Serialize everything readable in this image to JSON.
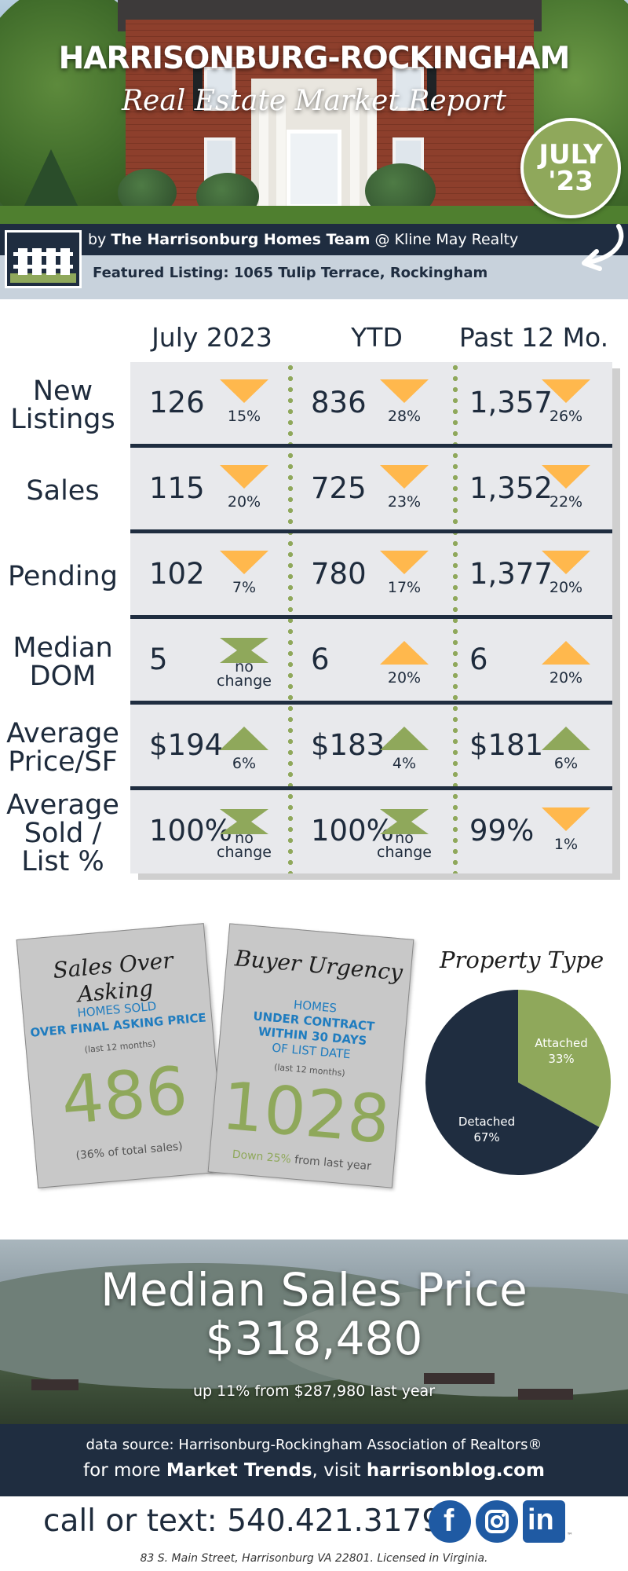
{
  "header": {
    "title": "HARRISONBURG-ROCKINGHAM",
    "subtitle": "Real Estate Market Report",
    "month_line1": "JULY",
    "month_line2": "'23",
    "byline_prefix": "by",
    "team": "The Harrisonburg Homes Team",
    "byline_suffix": "@ Kline May Realty",
    "featured": "Featured Listing:  1065 Tulip Terrace, Rockingham"
  },
  "stats": {
    "columns": [
      "July 2023",
      "YTD",
      "Past 12 Mo."
    ],
    "rows": [
      {
        "label_lines": [
          "New",
          "Listings"
        ],
        "cells": [
          {
            "value": "126",
            "pct": "15%",
            "trend": "down"
          },
          {
            "value": "836",
            "pct": "28%",
            "trend": "down"
          },
          {
            "value": "1,357",
            "pct": "26%",
            "trend": "down"
          }
        ]
      },
      {
        "label_lines": [
          "Sales"
        ],
        "cells": [
          {
            "value": "115",
            "pct": "20%",
            "trend": "down"
          },
          {
            "value": "725",
            "pct": "23%",
            "trend": "down"
          },
          {
            "value": "1,352",
            "pct": "22%",
            "trend": "down"
          }
        ]
      },
      {
        "label_lines": [
          "Pending"
        ],
        "cells": [
          {
            "value": "102",
            "pct": "7%",
            "trend": "down"
          },
          {
            "value": "780",
            "pct": "17%",
            "trend": "down"
          },
          {
            "value": "1,377",
            "pct": "20%",
            "trend": "down"
          }
        ]
      },
      {
        "label_lines": [
          "Median",
          "DOM"
        ],
        "cells": [
          {
            "value": "5",
            "pct": "no change",
            "trend": "flat"
          },
          {
            "value": "6",
            "pct": "20%",
            "trend": "up-orange"
          },
          {
            "value": "6",
            "pct": "20%",
            "trend": "up-orange"
          }
        ]
      },
      {
        "label_lines": [
          "Average",
          "Price/SF"
        ],
        "cells": [
          {
            "value": "$194",
            "pct": "6%",
            "trend": "up-green"
          },
          {
            "value": "$183",
            "pct": "4%",
            "trend": "up-green"
          },
          {
            "value": "$181",
            "pct": "6%",
            "trend": "up-green"
          }
        ]
      },
      {
        "label_lines": [
          "Average",
          "Sold /",
          "List %"
        ],
        "cells": [
          {
            "value": "100%",
            "pct": "no change",
            "trend": "flat"
          },
          {
            "value": "100%",
            "pct": "no change",
            "trend": "flat"
          },
          {
            "value": "99%",
            "pct": "1%",
            "trend": "down"
          }
        ]
      }
    ]
  },
  "cards": {
    "over_asking": {
      "title": "Sales Over Asking",
      "line1": "HOMES SOLD",
      "line2": "OVER FINAL ASKING PRICE",
      "note": "(last 12 months)",
      "value": "486",
      "foot": "(36% of total sales)"
    },
    "urgency": {
      "title": "Buyer Urgency",
      "line1": "HOMES",
      "line2": "UNDER CONTRACT",
      "line3": "WITHIN 30 DAYS",
      "line4": "OF LIST DATE",
      "note": "(last 12 months)",
      "value": "1028",
      "foot_green": "Down 25%",
      "foot_rest": " from last year"
    }
  },
  "chart_data": {
    "type": "pie",
    "title": "Property Type",
    "slices": [
      {
        "label": "Attached",
        "value": 33,
        "display": "33%",
        "color": "#8fa85b"
      },
      {
        "label": "Detached",
        "value": 67,
        "display": "67%",
        "color": "#1f2d40"
      }
    ]
  },
  "median": {
    "title": "Median Sales Price",
    "price": "$318,480",
    "note": "up 11% from $287,980 last year"
  },
  "source": {
    "line1": "data source: Harrisonburg-Rockingham Association of Realtors®",
    "line2_prefix": "for more ",
    "line2_bold1": "Market Trends",
    "line2_mid": ", visit ",
    "line2_bold2": "harrisonblog.com"
  },
  "contact": {
    "call": "call or text: 540.421.3179",
    "facebook": "f",
    "linkedin": "in",
    "linkedin_tm": "™",
    "address": "83 S. Main Street, Harrisonburg VA 22801. Licensed in Virginia."
  },
  "colors": {
    "navy": "#1f2d40",
    "green": "#8fa85b",
    "orange": "#ffb84d",
    "blue": "#1f7cbf",
    "social": "#1f5aa3"
  },
  "icons": {
    "trend_down": "triangle-down-icon",
    "trend_up": "triangle-up-icon",
    "no_change": "bowtie-icon",
    "logo": "fence-logo-icon",
    "arrow": "curved-arrow-icon",
    "social": [
      "facebook-icon",
      "instagram-icon",
      "linkedin-icon"
    ]
  }
}
